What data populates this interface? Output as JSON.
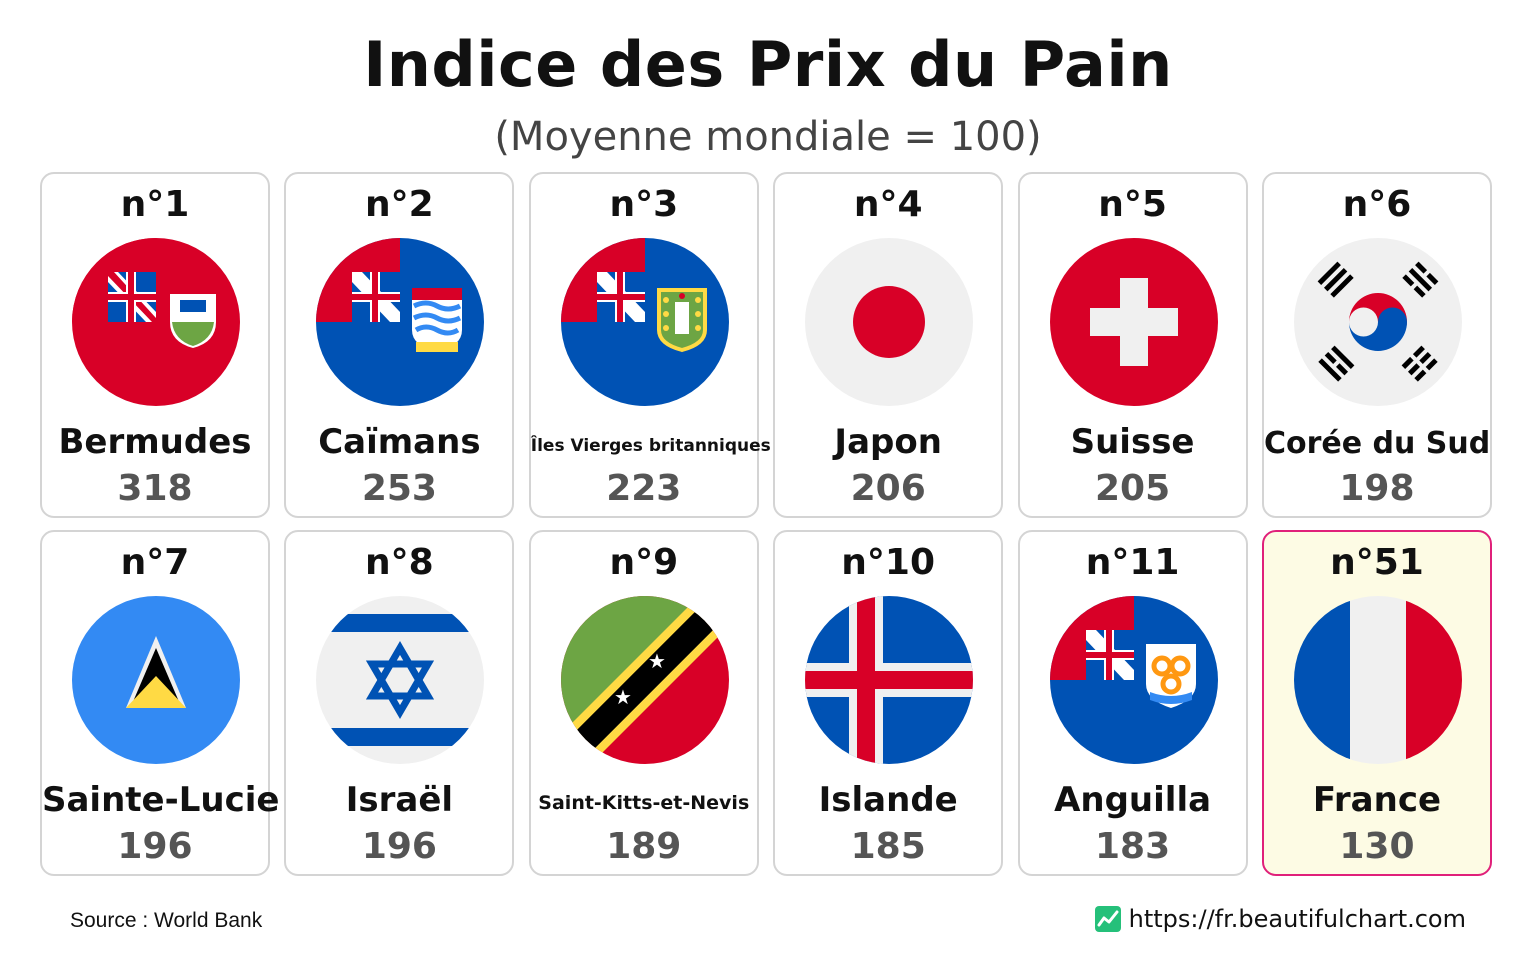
{
  "title": "Indice des Prix du Pain",
  "subtitle": "(Moyenne mondiale = 100)",
  "cards": [
    {
      "rank": "n°1",
      "name": "Bermudes",
      "value": "318",
      "flag_icon": "bermuda-flag-icon"
    },
    {
      "rank": "n°2",
      "name": "Caïmans",
      "value": "253",
      "flag_icon": "cayman-islands-flag-icon"
    },
    {
      "rank": "n°3",
      "name": "Îles Vierges britanniques",
      "value": "223",
      "flag_icon": "british-virgin-islands-flag-icon"
    },
    {
      "rank": "n°4",
      "name": "Japon",
      "value": "206",
      "flag_icon": "japan-flag-icon"
    },
    {
      "rank": "n°5",
      "name": "Suisse",
      "value": "205",
      "flag_icon": "switzerland-flag-icon"
    },
    {
      "rank": "n°6",
      "name": "Corée du Sud",
      "value": "198",
      "flag_icon": "south-korea-flag-icon"
    },
    {
      "rank": "n°7",
      "name": "Sainte-Lucie",
      "value": "196",
      "flag_icon": "saint-lucia-flag-icon"
    },
    {
      "rank": "n°8",
      "name": "Israël",
      "value": "196",
      "flag_icon": "israel-flag-icon"
    },
    {
      "rank": "n°9",
      "name": "Saint-Kitts-et-Nevis",
      "value": "189",
      "flag_icon": "saint-kitts-and-nevis-flag-icon"
    },
    {
      "rank": "n°10",
      "name": "Islande",
      "value": "185",
      "flag_icon": "iceland-flag-icon"
    },
    {
      "rank": "n°11",
      "name": "Anguilla",
      "value": "183",
      "flag_icon": "anguilla-flag-icon"
    },
    {
      "rank": "n°51",
      "name": "France",
      "value": "130",
      "flag_icon": "france-flag-icon",
      "highlighted": true
    }
  ],
  "footer": {
    "source": "Source : World Bank",
    "site": "https://fr.beautifulchart.com"
  },
  "colors": {
    "highlight_border": "#e0207a",
    "highlight_background": "#fdfbe4",
    "card_border": "#d4d4d4",
    "value_text": "#555555"
  }
}
